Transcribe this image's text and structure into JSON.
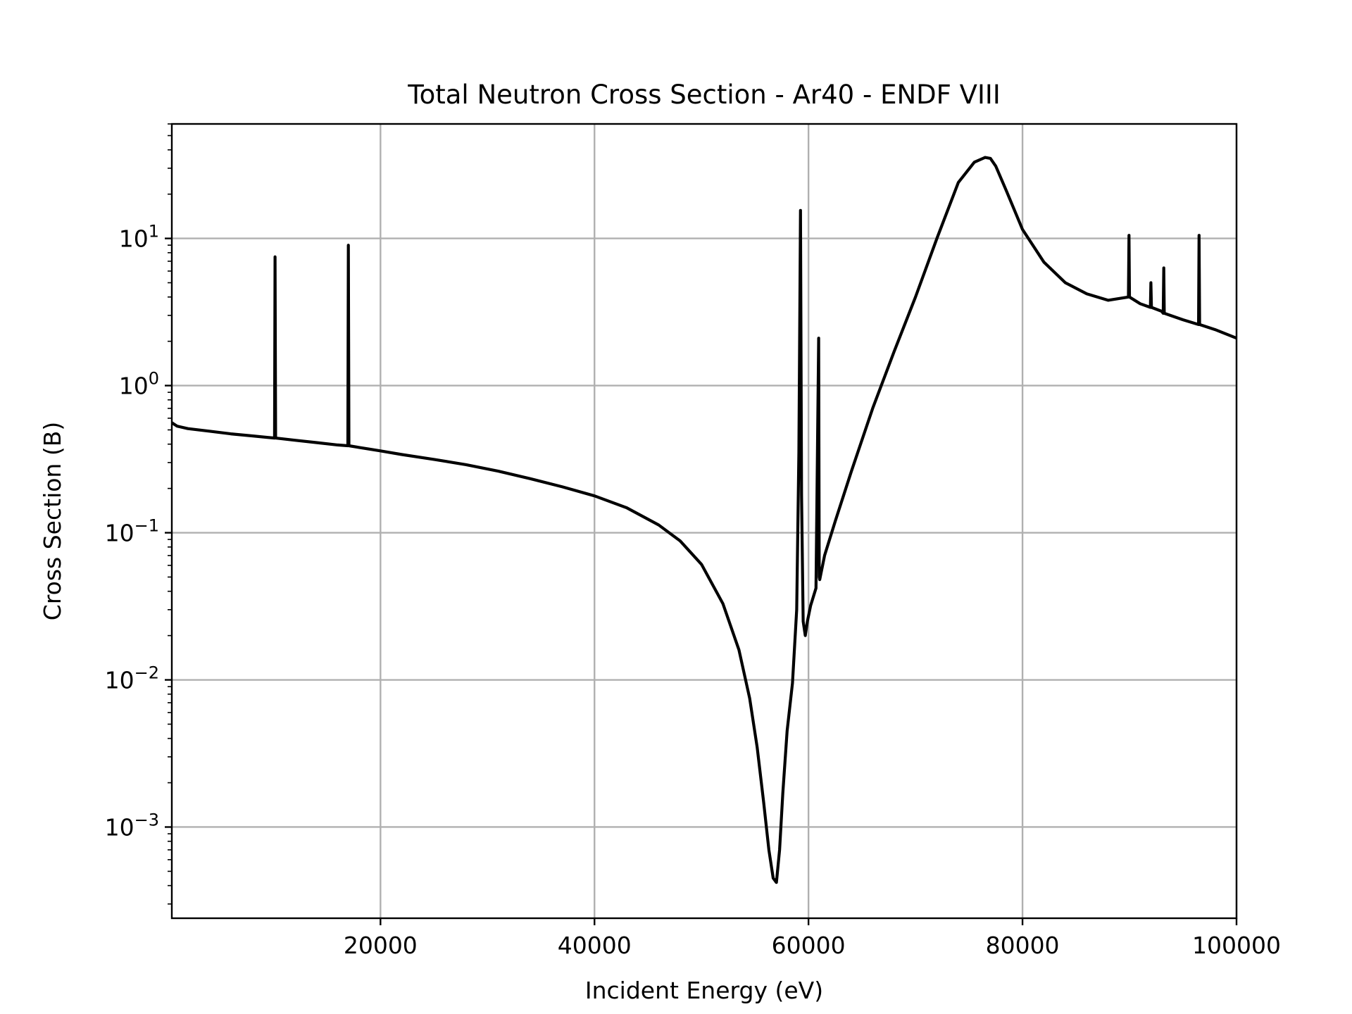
{
  "chart_data": {
    "type": "line",
    "title": "Total Neutron Cross Section - Ar40 - ENDF VIII",
    "xlabel": "Incident Energy (eV)",
    "ylabel": "Cross Section (B)",
    "x_scale": "linear",
    "y_scale": "log",
    "xlim": [
      500,
      100000
    ],
    "ylim": [
      0.00024,
      60
    ],
    "grid": true,
    "xticks": [
      20000,
      40000,
      60000,
      80000,
      100000
    ],
    "xtick_labels": [
      "20000",
      "40000",
      "60000",
      "80000",
      "100000"
    ],
    "yticks": [
      0.001,
      0.01,
      0.1,
      1,
      10
    ],
    "ytick_labels": [
      {
        "base": "10",
        "exp": "−3"
      },
      {
        "base": "10",
        "exp": "−2"
      },
      {
        "base": "10",
        "exp": "−1"
      },
      {
        "base": "10",
        "exp": "0"
      },
      {
        "base": "10",
        "exp": "1"
      }
    ],
    "series": [
      {
        "color": "#000000",
        "x": [
          500,
          1000,
          2000,
          4000,
          6000,
          8000,
          10100,
          10150,
          10200,
          12000,
          14000,
          16000,
          16950,
          17000,
          17050,
          18000,
          20000,
          22000,
          25000,
          28000,
          31000,
          34000,
          37000,
          40000,
          43000,
          46000,
          48000,
          50000,
          52000,
          53500,
          54500,
          55200,
          55800,
          56300,
          56700,
          57000,
          57300,
          57600,
          58000,
          58500,
          58900,
          59100,
          59250,
          59350,
          59500,
          59700,
          59900,
          60200,
          60700,
          60950,
          61000,
          61050,
          61500,
          62500,
          64000,
          66000,
          68000,
          70000,
          72000,
          74000,
          75500,
          76500,
          77000,
          77500,
          78500,
          80000,
          82000,
          84000,
          86000,
          88000,
          89900,
          89950,
          90000,
          91000,
          91950,
          92000,
          92050,
          93000,
          93150,
          93200,
          93250,
          95000,
          96450,
          96500,
          96550,
          98000,
          100000
        ],
        "y": [
          0.56,
          0.53,
          0.51,
          0.49,
          0.47,
          0.455,
          0.44,
          7.5,
          0.44,
          0.425,
          0.41,
          0.395,
          0.39,
          9.0,
          0.39,
          0.38,
          0.36,
          0.34,
          0.315,
          0.29,
          0.262,
          0.233,
          0.205,
          0.178,
          0.148,
          0.113,
          0.088,
          0.061,
          0.033,
          0.016,
          0.0075,
          0.0035,
          0.0015,
          0.0007,
          0.00045,
          0.00042,
          0.0007,
          0.0017,
          0.0045,
          0.0095,
          0.03,
          0.35,
          15.5,
          0.18,
          0.025,
          0.02,
          0.025,
          0.032,
          0.042,
          2.1,
          0.05,
          0.048,
          0.07,
          0.12,
          0.26,
          0.7,
          1.7,
          4.0,
          10.0,
          24.0,
          33.0,
          35.5,
          35.0,
          31.0,
          21.0,
          11.5,
          6.9,
          5.0,
          4.2,
          3.8,
          4.0,
          10.5,
          4.0,
          3.6,
          3.4,
          5.0,
          3.4,
          3.2,
          3.1,
          6.3,
          3.1,
          2.8,
          2.6,
          10.5,
          2.6,
          2.4,
          2.1
        ]
      }
    ]
  }
}
